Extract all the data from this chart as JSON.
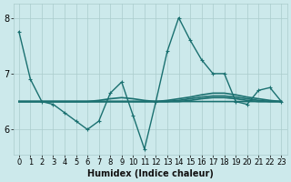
{
  "title": "",
  "xlabel": "Humidex (Indice chaleur)",
  "bg_color": "#cce9eb",
  "grid_color": "#aacccc",
  "line_color": "#1a7070",
  "xlim": [
    -0.5,
    23.5
  ],
  "ylim": [
    5.55,
    8.25
  ],
  "yticks": [
    6,
    7,
    8
  ],
  "xticks": [
    0,
    1,
    2,
    3,
    4,
    5,
    6,
    7,
    8,
    9,
    10,
    11,
    12,
    13,
    14,
    15,
    16,
    17,
    18,
    19,
    20,
    21,
    22,
    23
  ],
  "series": [
    {
      "x": [
        0,
        1,
        2,
        3,
        4,
        5,
        6,
        7,
        8,
        9,
        10,
        11,
        12,
        13,
        14,
        15,
        16,
        17,
        18,
        19,
        20,
        21,
        22,
        23
      ],
      "y": [
        7.75,
        6.9,
        6.5,
        6.45,
        6.3,
        6.15,
        6.0,
        6.15,
        6.65,
        6.85,
        6.25,
        5.65,
        6.5,
        7.4,
        8.0,
        7.6,
        7.25,
        7.0,
        7.0,
        6.5,
        6.45,
        6.7,
        6.75,
        6.5
      ],
      "marker": true,
      "lw": 1.0
    },
    {
      "x": [
        0,
        1,
        2,
        3,
        4,
        5,
        6,
        7,
        8,
        9,
        10,
        11,
        12,
        13,
        14,
        15,
        16,
        17,
        18,
        19,
        20,
        21,
        22,
        23
      ],
      "y": [
        6.5,
        6.5,
        6.5,
        6.5,
        6.5,
        6.5,
        6.5,
        6.5,
        6.5,
        6.5,
        6.5,
        6.5,
        6.5,
        6.52,
        6.55,
        6.58,
        6.62,
        6.65,
        6.65,
        6.62,
        6.58,
        6.55,
        6.52,
        6.5
      ],
      "marker": false,
      "lw": 1.2
    },
    {
      "x": [
        0,
        1,
        2,
        3,
        4,
        5,
        6,
        7,
        8,
        9,
        10,
        11,
        12,
        13,
        14,
        15,
        16,
        17,
        18,
        19,
        20,
        21,
        22,
        23
      ],
      "y": [
        6.5,
        6.5,
        6.5,
        6.5,
        6.5,
        6.5,
        6.5,
        6.5,
        6.5,
        6.5,
        6.5,
        6.5,
        6.5,
        6.5,
        6.52,
        6.55,
        6.58,
        6.6,
        6.6,
        6.58,
        6.55,
        6.52,
        6.5,
        6.5
      ],
      "marker": false,
      "lw": 1.2
    },
    {
      "x": [
        0,
        1,
        2,
        3,
        4,
        5,
        6,
        7,
        8,
        9,
        10,
        11,
        12,
        13,
        14,
        15,
        16,
        17,
        18,
        19,
        20,
        21,
        22,
        23
      ],
      "y": [
        6.5,
        6.5,
        6.5,
        6.5,
        6.5,
        6.5,
        6.5,
        6.5,
        6.5,
        6.5,
        6.5,
        6.5,
        6.5,
        6.5,
        6.5,
        6.52,
        6.55,
        6.57,
        6.57,
        6.55,
        6.52,
        6.5,
        6.5,
        6.5
      ],
      "marker": false,
      "lw": 1.2
    },
    {
      "x": [
        0,
        1,
        2,
        3,
        4,
        5,
        6,
        7,
        8,
        9,
        10,
        11,
        12,
        13,
        14,
        15,
        16,
        17,
        18,
        19,
        20,
        21,
        22,
        23
      ],
      "y": [
        6.5,
        6.5,
        6.5,
        6.5,
        6.5,
        6.5,
        6.5,
        6.52,
        6.55,
        6.57,
        6.55,
        6.52,
        6.5,
        6.5,
        6.5,
        6.5,
        6.5,
        6.5,
        6.5,
        6.5,
        6.5,
        6.5,
        6.5,
        6.5
      ],
      "marker": false,
      "lw": 1.2
    }
  ],
  "xlabel_fontsize": 7,
  "tick_fontsize": 6
}
